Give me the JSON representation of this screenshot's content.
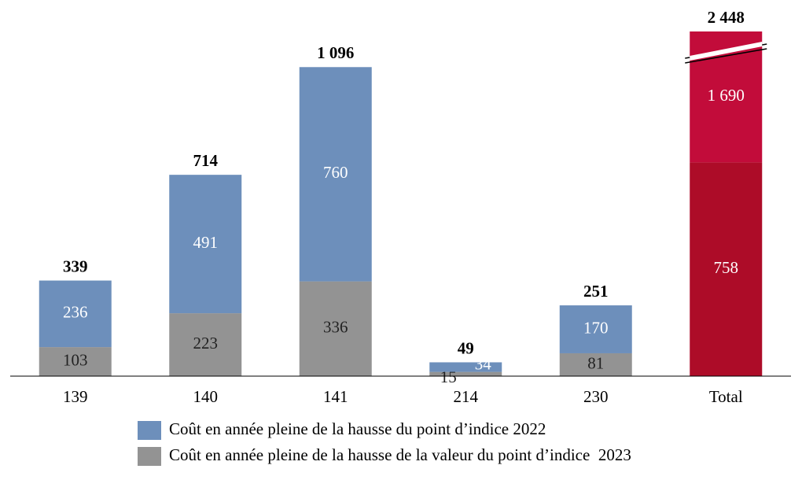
{
  "chart_data": {
    "type": "stacked_bar",
    "categories": [
      "139",
      "140",
      "141",
      "214",
      "230",
      "Total"
    ],
    "series": [
      {
        "name": "Coût en année pleine de la hausse du point d’indice 2022",
        "color": "#6d8fbb",
        "colors": [
          "#6d8fbb",
          "#6d8fbb",
          "#6d8fbb",
          "#6d8fbb",
          "#6d8fbb",
          "#c20c3a"
        ],
        "values": [
          236,
          491,
          760,
          34,
          170,
          1690
        ],
        "value_labels": [
          "236",
          "491",
          "760",
          "34",
          "170",
          "1 690"
        ]
      },
      {
        "name": "Coût en année pleine de la hausse de la valeur du point d’indice  2023",
        "color": "#939393",
        "colors": [
          "#939393",
          "#939393",
          "#939393",
          "#939393",
          "#939393",
          "#ad0c28"
        ],
        "values": [
          103,
          223,
          336,
          15,
          81,
          758
        ]
      }
    ],
    "totals": [
      339,
      714,
      1096,
      49,
      251,
      2448
    ],
    "total_labels": [
      "339",
      "714",
      "1 096",
      "49",
      "251",
      "2 448"
    ],
    "ylim": [
      0,
      1200
    ],
    "axis_break": true
  }
}
